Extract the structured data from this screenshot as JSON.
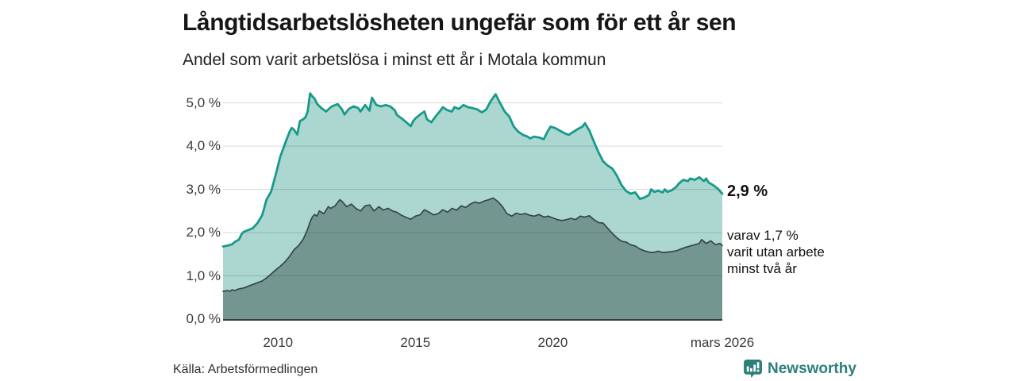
{
  "title": "Långtidsarbetslösheten ungefär som för ett år sen",
  "subtitle": "Andel som varit arbetslösa i minst ett år i Motala kommun",
  "source": "Källa: Arbetsförmedlingen",
  "branding": {
    "wordmark": "Newsworthy",
    "icon": "newsworthy-chart-bubble-icon",
    "accent_color": "#2e7f7b"
  },
  "annotations": {
    "latest_total_label": "2,9 %",
    "latest_detail_line1": "varav 1,7 %",
    "latest_detail_line2": "varit utan arbete",
    "latest_detail_line3": "minst två år"
  },
  "colors": {
    "series_total_line": "#189a8b",
    "series_total_fill": "#abd7d0",
    "series_twoyear_line": "#35464a",
    "series_twoyear_fill": "#739790",
    "gridline": "rgba(0,0,0,0.15)",
    "axis_line": "#3b3b3b",
    "text": "#1a1a1a"
  },
  "chart_data": {
    "type": "area",
    "title": "Långtidsarbetslösheten ungefär som för ett år sen",
    "subtitle": "Andel som varit arbetslösa i minst ett år i Motala kommun",
    "unit": "%",
    "legend_position": "none",
    "x_axis": {
      "range": [
        2008,
        2026.17
      ],
      "tick_labels": [
        "2010",
        "2015",
        "2020",
        "mars 2026"
      ],
      "tick_positions": [
        2010,
        2015,
        2020,
        2026.17
      ]
    },
    "y_axis": {
      "range": [
        0,
        5.36
      ],
      "grid": true,
      "tick_values": [
        0,
        1,
        2,
        3,
        4,
        5
      ],
      "tick_labels": [
        "0,0 %",
        "1,0 %",
        "2,0 %",
        "3,0 %",
        "4,0 %",
        "5,0 %"
      ]
    },
    "series": [
      {
        "name": "Arbetslösa minst ett år",
        "line_color": "#189a8b",
        "fill_color": "#abd7d0",
        "line_width": 2.8,
        "latest_value": 2.9,
        "points": [
          [
            2008.0,
            1.68
          ],
          [
            2008.17,
            1.7
          ],
          [
            2008.33,
            1.73
          ],
          [
            2008.42,
            1.78
          ],
          [
            2008.58,
            1.84
          ],
          [
            2008.67,
            1.96
          ],
          [
            2008.75,
            2.02
          ],
          [
            2008.92,
            2.06
          ],
          [
            2009.08,
            2.1
          ],
          [
            2009.25,
            2.22
          ],
          [
            2009.42,
            2.4
          ],
          [
            2009.5,
            2.57
          ],
          [
            2009.58,
            2.76
          ],
          [
            2009.75,
            2.95
          ],
          [
            2009.92,
            3.35
          ],
          [
            2010.08,
            3.75
          ],
          [
            2010.25,
            4.05
          ],
          [
            2010.42,
            4.33
          ],
          [
            2010.5,
            4.42
          ],
          [
            2010.58,
            4.38
          ],
          [
            2010.7,
            4.27
          ],
          [
            2010.8,
            4.58
          ],
          [
            2010.92,
            4.62
          ],
          [
            2011.0,
            4.67
          ],
          [
            2011.08,
            4.8
          ],
          [
            2011.17,
            5.22
          ],
          [
            2011.25,
            5.15
          ],
          [
            2011.33,
            5.1
          ],
          [
            2011.42,
            4.98
          ],
          [
            2011.58,
            4.88
          ],
          [
            2011.75,
            4.8
          ],
          [
            2011.92,
            4.9
          ],
          [
            2012.0,
            4.93
          ],
          [
            2012.17,
            4.97
          ],
          [
            2012.33,
            4.85
          ],
          [
            2012.42,
            4.73
          ],
          [
            2012.58,
            4.86
          ],
          [
            2012.75,
            4.92
          ],
          [
            2012.92,
            4.88
          ],
          [
            2013.0,
            4.8
          ],
          [
            2013.17,
            4.95
          ],
          [
            2013.33,
            4.82
          ],
          [
            2013.42,
            5.12
          ],
          [
            2013.58,
            4.95
          ],
          [
            2013.75,
            4.92
          ],
          [
            2013.92,
            4.95
          ],
          [
            2014.08,
            4.92
          ],
          [
            2014.25,
            4.83
          ],
          [
            2014.33,
            4.72
          ],
          [
            2014.5,
            4.64
          ],
          [
            2014.67,
            4.55
          ],
          [
            2014.83,
            4.46
          ],
          [
            2014.92,
            4.58
          ],
          [
            2015.0,
            4.64
          ],
          [
            2015.17,
            4.73
          ],
          [
            2015.33,
            4.8
          ],
          [
            2015.42,
            4.62
          ],
          [
            2015.58,
            4.55
          ],
          [
            2015.75,
            4.7
          ],
          [
            2015.92,
            4.83
          ],
          [
            2016.0,
            4.9
          ],
          [
            2016.17,
            4.83
          ],
          [
            2016.33,
            4.8
          ],
          [
            2016.42,
            4.9
          ],
          [
            2016.58,
            4.86
          ],
          [
            2016.75,
            4.95
          ],
          [
            2016.92,
            4.9
          ],
          [
            2017.08,
            4.88
          ],
          [
            2017.25,
            4.85
          ],
          [
            2017.42,
            4.78
          ],
          [
            2017.58,
            4.85
          ],
          [
            2017.75,
            5.05
          ],
          [
            2017.92,
            5.2
          ],
          [
            2018.08,
            5.0
          ],
          [
            2018.25,
            4.8
          ],
          [
            2018.42,
            4.68
          ],
          [
            2018.58,
            4.45
          ],
          [
            2018.75,
            4.33
          ],
          [
            2018.92,
            4.26
          ],
          [
            2019.08,
            4.22
          ],
          [
            2019.17,
            4.18
          ],
          [
            2019.33,
            4.22
          ],
          [
            2019.5,
            4.2
          ],
          [
            2019.67,
            4.16
          ],
          [
            2019.83,
            4.36
          ],
          [
            2019.92,
            4.45
          ],
          [
            2020.08,
            4.42
          ],
          [
            2020.25,
            4.36
          ],
          [
            2020.42,
            4.3
          ],
          [
            2020.58,
            4.26
          ],
          [
            2020.75,
            4.33
          ],
          [
            2020.92,
            4.4
          ],
          [
            2021.08,
            4.45
          ],
          [
            2021.17,
            4.53
          ],
          [
            2021.33,
            4.36
          ],
          [
            2021.5,
            4.1
          ],
          [
            2021.67,
            3.85
          ],
          [
            2021.83,
            3.65
          ],
          [
            2022.0,
            3.55
          ],
          [
            2022.17,
            3.48
          ],
          [
            2022.33,
            3.32
          ],
          [
            2022.5,
            3.1
          ],
          [
            2022.67,
            2.96
          ],
          [
            2022.83,
            2.9
          ],
          [
            2023.0,
            2.93
          ],
          [
            2023.17,
            2.78
          ],
          [
            2023.33,
            2.81
          ],
          [
            2023.5,
            2.87
          ],
          [
            2023.58,
            3.0
          ],
          [
            2023.7,
            2.94
          ],
          [
            2023.83,
            2.97
          ],
          [
            2024.0,
            2.93
          ],
          [
            2024.08,
            3.0
          ],
          [
            2024.17,
            2.94
          ],
          [
            2024.33,
            2.98
          ],
          [
            2024.5,
            3.06
          ],
          [
            2024.58,
            3.13
          ],
          [
            2024.75,
            3.22
          ],
          [
            2024.92,
            3.19
          ],
          [
            2025.0,
            3.25
          ],
          [
            2025.17,
            3.22
          ],
          [
            2025.33,
            3.28
          ],
          [
            2025.5,
            3.19
          ],
          [
            2025.58,
            3.25
          ],
          [
            2025.67,
            3.16
          ],
          [
            2025.83,
            3.1
          ],
          [
            2026.0,
            3.02
          ],
          [
            2026.17,
            2.9
          ]
        ]
      },
      {
        "name": "Arbetslösa minst två år",
        "line_color": "#35464a",
        "fill_color": "#739790",
        "line_width": 1.7,
        "latest_value": 1.7,
        "points": [
          [
            2008.0,
            0.64
          ],
          [
            2008.17,
            0.66
          ],
          [
            2008.25,
            0.64
          ],
          [
            2008.33,
            0.68
          ],
          [
            2008.42,
            0.66
          ],
          [
            2008.58,
            0.7
          ],
          [
            2008.75,
            0.72
          ],
          [
            2008.92,
            0.76
          ],
          [
            2009.08,
            0.8
          ],
          [
            2009.25,
            0.84
          ],
          [
            2009.42,
            0.88
          ],
          [
            2009.58,
            0.95
          ],
          [
            2009.75,
            1.04
          ],
          [
            2009.92,
            1.14
          ],
          [
            2010.08,
            1.22
          ],
          [
            2010.25,
            1.32
          ],
          [
            2010.42,
            1.45
          ],
          [
            2010.58,
            1.6
          ],
          [
            2010.75,
            1.7
          ],
          [
            2010.92,
            1.85
          ],
          [
            2011.08,
            2.08
          ],
          [
            2011.17,
            2.25
          ],
          [
            2011.25,
            2.36
          ],
          [
            2011.33,
            2.42
          ],
          [
            2011.42,
            2.38
          ],
          [
            2011.5,
            2.5
          ],
          [
            2011.67,
            2.44
          ],
          [
            2011.83,
            2.6
          ],
          [
            2011.92,
            2.56
          ],
          [
            2012.08,
            2.62
          ],
          [
            2012.25,
            2.76
          ],
          [
            2012.33,
            2.72
          ],
          [
            2012.5,
            2.6
          ],
          [
            2012.67,
            2.66
          ],
          [
            2012.83,
            2.56
          ],
          [
            2013.0,
            2.5
          ],
          [
            2013.17,
            2.62
          ],
          [
            2013.33,
            2.64
          ],
          [
            2013.5,
            2.5
          ],
          [
            2013.67,
            2.6
          ],
          [
            2013.83,
            2.52
          ],
          [
            2014.0,
            2.56
          ],
          [
            2014.17,
            2.5
          ],
          [
            2014.33,
            2.47
          ],
          [
            2014.5,
            2.4
          ],
          [
            2014.67,
            2.35
          ],
          [
            2014.83,
            2.31
          ],
          [
            2015.0,
            2.38
          ],
          [
            2015.17,
            2.41
          ],
          [
            2015.33,
            2.53
          ],
          [
            2015.5,
            2.47
          ],
          [
            2015.67,
            2.41
          ],
          [
            2015.83,
            2.44
          ],
          [
            2016.0,
            2.53
          ],
          [
            2016.17,
            2.47
          ],
          [
            2016.33,
            2.56
          ],
          [
            2016.5,
            2.52
          ],
          [
            2016.67,
            2.62
          ],
          [
            2016.83,
            2.58
          ],
          [
            2017.0,
            2.66
          ],
          [
            2017.17,
            2.71
          ],
          [
            2017.33,
            2.68
          ],
          [
            2017.5,
            2.73
          ],
          [
            2017.67,
            2.76
          ],
          [
            2017.83,
            2.8
          ],
          [
            2018.0,
            2.72
          ],
          [
            2018.17,
            2.6
          ],
          [
            2018.33,
            2.44
          ],
          [
            2018.5,
            2.38
          ],
          [
            2018.67,
            2.45
          ],
          [
            2018.83,
            2.42
          ],
          [
            2019.0,
            2.44
          ],
          [
            2019.17,
            2.4
          ],
          [
            2019.33,
            2.38
          ],
          [
            2019.5,
            2.42
          ],
          [
            2019.67,
            2.36
          ],
          [
            2019.83,
            2.38
          ],
          [
            2020.0,
            2.34
          ],
          [
            2020.17,
            2.3
          ],
          [
            2020.33,
            2.28
          ],
          [
            2020.5,
            2.3
          ],
          [
            2020.67,
            2.33
          ],
          [
            2020.83,
            2.3
          ],
          [
            2021.0,
            2.38
          ],
          [
            2021.17,
            2.36
          ],
          [
            2021.33,
            2.39
          ],
          [
            2021.5,
            2.3
          ],
          [
            2021.67,
            2.23
          ],
          [
            2021.83,
            2.22
          ],
          [
            2022.0,
            2.1
          ],
          [
            2022.17,
            1.98
          ],
          [
            2022.33,
            1.88
          ],
          [
            2022.5,
            1.8
          ],
          [
            2022.67,
            1.78
          ],
          [
            2022.83,
            1.72
          ],
          [
            2023.0,
            1.69
          ],
          [
            2023.17,
            1.62
          ],
          [
            2023.33,
            1.58
          ],
          [
            2023.5,
            1.55
          ],
          [
            2023.67,
            1.54
          ],
          [
            2023.83,
            1.57
          ],
          [
            2024.0,
            1.54
          ],
          [
            2024.17,
            1.55
          ],
          [
            2024.33,
            1.56
          ],
          [
            2024.5,
            1.58
          ],
          [
            2024.67,
            1.62
          ],
          [
            2024.83,
            1.66
          ],
          [
            2025.0,
            1.69
          ],
          [
            2025.17,
            1.72
          ],
          [
            2025.33,
            1.75
          ],
          [
            2025.42,
            1.84
          ],
          [
            2025.58,
            1.75
          ],
          [
            2025.75,
            1.81
          ],
          [
            2025.92,
            1.72
          ],
          [
            2026.08,
            1.75
          ],
          [
            2026.17,
            1.7
          ]
        ]
      }
    ]
  }
}
